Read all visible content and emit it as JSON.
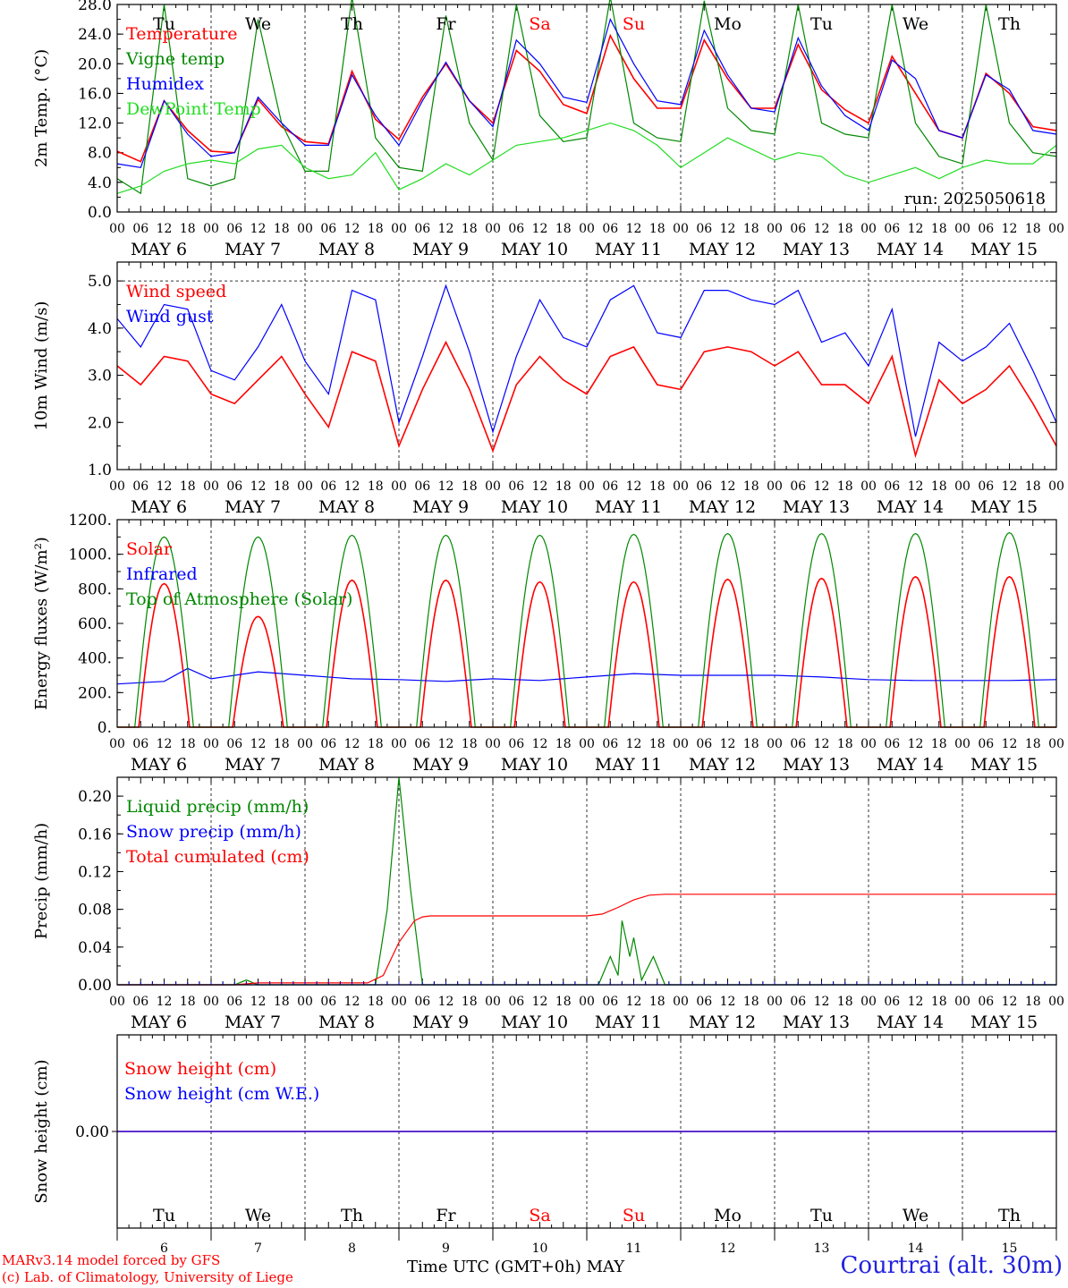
{
  "run_label": "run: 2025050618",
  "x_axis_title": "Time UTC (GMT+0h)",
  "month_label": "MAY",
  "station_label": "Courtrai (alt. 30m)",
  "credits": [
    "MARv3.14 model forced by GFS",
    "(c) Lab. of Climatology, University of Liege"
  ],
  "colors": {
    "red": "#ff0000",
    "green": "#008800",
    "blue": "#0000ff",
    "light_green": "#22dd22",
    "weekend": "#ff0000"
  },
  "chart_data": {
    "x_start": "2025-05-06 00:00 UTC",
    "days": [
      6,
      7,
      8,
      9,
      10,
      11,
      12,
      13,
      14,
      15
    ],
    "day_names": [
      "Tu",
      "We",
      "Th",
      "Fr",
      "Sa",
      "Su",
      "Mo",
      "Tu",
      "We",
      "Th"
    ],
    "weekend_days": [
      "Sa",
      "Su"
    ],
    "hour_ticks": [
      "00",
      "06",
      "12",
      "18"
    ],
    "date_labels": [
      "MAY 6",
      "MAY 7",
      "MAY 8",
      "MAY 9",
      "MAY 10",
      "MAY 11",
      "MAY 12",
      "MAY 13",
      "MAY 14",
      "MAY 15"
    ],
    "panels": [
      {
        "type": "line",
        "ylabel": "2m Temp. (°C)",
        "ylim": [
          0,
          28
        ],
        "yticks": [
          "0.0",
          "4.0",
          "8.0",
          "12.0",
          "16.0",
          "20.0",
          "24.0",
          "28.0"
        ],
        "series": [
          {
            "name": "Temperature",
            "color": "#ff0000",
            "x": [
              0,
              6,
              12,
              18,
              24,
              30,
              36,
              42,
              48,
              54,
              60,
              66,
              72,
              78,
              84,
              90,
              96,
              102,
              108,
              114,
              120,
              126,
              132,
              138,
              144,
              150,
              156,
              162,
              168,
              174,
              180,
              186,
              192,
              198,
              204,
              210,
              216,
              222,
              228,
              234,
              240
            ],
            "y": [
              8.2,
              6.8,
              15.0,
              11.0,
              8.2,
              8.0,
              15.2,
              11.5,
              9.5,
              9.2,
              19.0,
              12.5,
              9.8,
              15.5,
              20.0,
              15.0,
              12.0,
              21.8,
              19.0,
              14.5,
              13.3,
              23.8,
              18.0,
              14.0,
              14.0,
              23.2,
              18.0,
              14.0,
              14.0,
              22.6,
              16.5,
              13.8,
              12.0,
              21.0,
              16.0,
              11.0,
              10.0,
              18.7,
              16.0,
              11.5,
              11.0
            ]
          },
          {
            "name": "Vigne temp",
            "color": "#008800",
            "x": [
              0,
              6,
              12,
              18,
              24,
              30,
              36,
              42,
              48,
              54,
              60,
              66,
              72,
              78,
              84,
              90,
              96,
              102,
              108,
              114,
              120,
              126,
              132,
              138,
              144,
              150,
              156,
              162,
              168,
              174,
              180,
              186,
              192,
              198,
              204,
              210,
              216,
              222,
              228,
              234,
              240
            ],
            "y": [
              4.5,
              2.5,
              28.0,
              4.5,
              3.5,
              4.5,
              26.0,
              12.0,
              5.5,
              5.5,
              29.0,
              10.0,
              6.0,
              5.5,
              26.5,
              12.0,
              7.0,
              28.0,
              13.0,
              9.5,
              10.0,
              29.0,
              12.0,
              10.0,
              9.5,
              28.5,
              14.0,
              11.0,
              10.5,
              28.0,
              12.0,
              10.5,
              10.0,
              28.0,
              12.0,
              7.5,
              6.5,
              28.0,
              12.0,
              8.0,
              7.5
            ]
          },
          {
            "name": "Humidex",
            "color": "#0000ff",
            "x": [
              0,
              6,
              12,
              18,
              24,
              30,
              36,
              42,
              48,
              54,
              60,
              66,
              72,
              78,
              84,
              90,
              96,
              102,
              108,
              114,
              120,
              126,
              132,
              138,
              144,
              150,
              156,
              162,
              168,
              174,
              180,
              186,
              192,
              198,
              204,
              210,
              216,
              222,
              228,
              234,
              240
            ],
            "y": [
              6.5,
              6.0,
              15.0,
              10.5,
              7.5,
              8.0,
              15.5,
              12.0,
              9.0,
              9.0,
              18.5,
              13.0,
              9.0,
              15.0,
              20.2,
              15.0,
              11.5,
              23.2,
              20.0,
              15.5,
              14.8,
              26.0,
              20.0,
              15.0,
              14.5,
              24.5,
              18.5,
              14.0,
              13.5,
              23.5,
              17.0,
              13.0,
              11.0,
              20.5,
              18.0,
              11.0,
              10.0,
              18.5,
              16.5,
              11.0,
              10.5
            ]
          },
          {
            "name": "DewPoint Temp",
            "color": "#22dd22",
            "x": [
              0,
              6,
              12,
              18,
              24,
              30,
              36,
              42,
              48,
              54,
              60,
              66,
              72,
              78,
              84,
              90,
              96,
              102,
              108,
              114,
              120,
              126,
              132,
              138,
              144,
              150,
              156,
              162,
              168,
              174,
              180,
              186,
              192,
              198,
              204,
              210,
              216,
              222,
              228,
              234,
              240
            ],
            "y": [
              2.5,
              3.5,
              5.5,
              6.5,
              7.0,
              6.5,
              8.5,
              9.0,
              6.0,
              4.5,
              5.0,
              8.0,
              3.0,
              4.5,
              6.5,
              5.0,
              7.0,
              9.0,
              9.5,
              10.0,
              11.0,
              12.0,
              11.0,
              9.0,
              6.0,
              8.0,
              10.0,
              8.5,
              7.0,
              8.0,
              7.5,
              5.0,
              4.0,
              5.0,
              6.0,
              4.5,
              6.0,
              7.0,
              6.5,
              6.5,
              9.0
            ]
          }
        ]
      },
      {
        "type": "line",
        "ylabel": "10m Wind (m/s)",
        "ylim": [
          1,
          5.4
        ],
        "yticks": [
          "1.0",
          "2.0",
          "3.0",
          "4.0",
          "5.0"
        ],
        "series": [
          {
            "name": "Wind speed",
            "color": "#ff0000",
            "x": [
              0,
              6,
              12,
              18,
              24,
              30,
              36,
              42,
              48,
              54,
              60,
              66,
              72,
              78,
              84,
              90,
              96,
              102,
              108,
              114,
              120,
              126,
              132,
              138,
              144,
              150,
              156,
              162,
              168,
              174,
              180,
              186,
              192,
              198,
              204,
              210,
              216,
              222,
              228,
              234,
              240
            ],
            "y": [
              3.2,
              2.8,
              3.4,
              3.3,
              2.6,
              2.4,
              2.9,
              3.4,
              2.6,
              1.9,
              3.5,
              3.3,
              1.5,
              2.7,
              3.7,
              2.7,
              1.4,
              2.8,
              3.4,
              2.9,
              2.6,
              3.4,
              3.6,
              2.8,
              2.7,
              3.5,
              3.6,
              3.5,
              3.2,
              3.5,
              2.8,
              2.8,
              2.4,
              3.4,
              1.3,
              2.9,
              2.4,
              2.7,
              3.2,
              2.4,
              1.5
            ]
          },
          {
            "name": "Wind gust",
            "color": "#0000ff",
            "x": [
              0,
              6,
              12,
              18,
              24,
              30,
              36,
              42,
              48,
              54,
              60,
              66,
              72,
              78,
              84,
              90,
              96,
              102,
              108,
              114,
              120,
              126,
              132,
              138,
              144,
              150,
              156,
              162,
              168,
              174,
              180,
              186,
              192,
              198,
              204,
              210,
              216,
              222,
              228,
              234,
              240
            ],
            "y": [
              4.2,
              3.6,
              4.5,
              4.4,
              3.1,
              2.9,
              3.6,
              4.5,
              3.3,
              2.6,
              4.8,
              4.6,
              2.0,
              3.4,
              4.9,
              3.5,
              1.8,
              3.4,
              4.6,
              3.8,
              3.6,
              4.6,
              4.9,
              3.9,
              3.8,
              4.8,
              4.8,
              4.6,
              4.5,
              4.8,
              3.7,
              3.9,
              3.2,
              4.4,
              1.7,
              3.7,
              3.3,
              3.6,
              4.1,
              3.1,
              2.0
            ]
          }
        ]
      },
      {
        "type": "line",
        "ylabel": "Energy fluxes (W/m²)",
        "ylim": [
          0,
          1200
        ],
        "yticks": [
          "0.",
          "200.",
          "400.",
          "600.",
          "800.",
          "1000.",
          "1200."
        ],
        "series": [
          {
            "name": "Solar",
            "color": "#ff0000",
            "peaks": [
              830,
              640,
              850,
              850,
              840,
              840,
              855,
              860,
              870,
              870
            ]
          },
          {
            "name": "Infrared",
            "color": "#0000ff",
            "x": [
              0,
              12,
              18,
              24,
              36,
              48,
              60,
              72,
              84,
              96,
              108,
              120,
              132,
              144,
              156,
              168,
              180,
              192,
              204,
              216,
              228,
              240
            ],
            "y": [
              250,
              265,
              340,
              280,
              320,
              300,
              280,
              275,
              265,
              280,
              270,
              290,
              310,
              300,
              300,
              300,
              290,
              275,
              270,
              270,
              270,
              275
            ]
          },
          {
            "name": "Top of Atmosphere (Solar)",
            "color": "#008800",
            "peaks": [
              1100,
              1100,
              1110,
              1110,
              1110,
              1115,
              1120,
              1120,
              1120,
              1125
            ]
          }
        ]
      },
      {
        "type": "line",
        "ylabel": "Precip (mm/h)",
        "ylim": [
          0,
          0.22
        ],
        "yticks": [
          "0.00",
          "0.04",
          "0.08",
          "0.12",
          "0.16",
          "0.20"
        ],
        "series": [
          {
            "name": "Liquid precip (mm/h)",
            "color": "#008800",
            "x": [
              0,
              30,
              33,
              36,
              66,
              69,
              72,
              75,
              78,
              120,
              123,
              126,
              128,
              129,
              131,
              132,
              134,
              137,
              140,
              240
            ],
            "y": [
              0,
              0,
              0.005,
              0,
              0,
              0.08,
              0.22,
              0.1,
              0,
              0,
              0,
              0.03,
              0.01,
              0.068,
              0.03,
              0.05,
              0.005,
              0.03,
              0,
              0
            ]
          },
          {
            "name": "Snow precip (mm/h)",
            "color": "#0000ff",
            "x": [
              0,
              240
            ],
            "y": [
              0,
              0
            ]
          },
          {
            "name": "Total cumulated (cm)",
            "color": "#ff0000",
            "x": [
              0,
              30,
              36,
              64,
              68,
              72,
              76,
              78,
              80,
              120,
              124,
              128,
              132,
              136,
              140,
              240
            ],
            "y": [
              0,
              0,
              0.002,
              0.002,
              0.01,
              0.045,
              0.068,
              0.072,
              0.073,
              0.073,
              0.075,
              0.082,
              0.09,
              0.095,
              0.096,
              0.096
            ]
          }
        ]
      },
      {
        "type": "line",
        "ylabel": "Snow height (cm)",
        "ylim": [
          -0.5,
          0.5
        ],
        "yticks": [
          "0.00"
        ],
        "series": [
          {
            "name": "Snow height (cm)",
            "color": "#ff0000",
            "x": [
              0,
              240
            ],
            "y": [
              0,
              0
            ]
          },
          {
            "name": "Snow height (cm W.E.)",
            "color": "#0000ff",
            "x": [
              0,
              240
            ],
            "y": [
              0,
              0
            ]
          }
        ]
      }
    ]
  }
}
